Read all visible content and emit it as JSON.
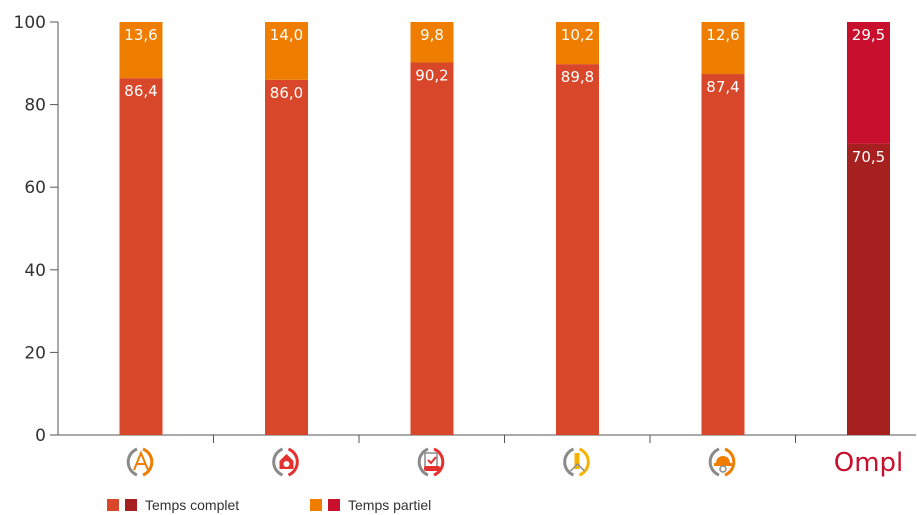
{
  "chart_data": {
    "type": "bar",
    "stacked": true,
    "categories": [
      "architecture-icon",
      "real-estate-icon",
      "automotive-expertise-icon",
      "surveyor-icon",
      "engineering-icon",
      "Ompl"
    ],
    "series": [
      {
        "name": "Temps complet",
        "values": [
          86.4,
          86.0,
          90.2,
          89.8,
          87.4,
          70.5
        ],
        "labels": [
          "86,4",
          "86,0",
          "90,2",
          "89,8",
          "87,4",
          "70,5"
        ],
        "color": "#d9472b",
        "highlight_color": "#a6201f"
      },
      {
        "name": "Temps partiel",
        "values": [
          13.6,
          14.0,
          9.8,
          10.2,
          12.6,
          29.5
        ],
        "labels": [
          "13,6",
          "14,0",
          "9,8",
          "10,2",
          "12,6",
          "29,5"
        ],
        "color": "#ef7d00",
        "highlight_color": "#c8102e"
      }
    ],
    "ylim": [
      0,
      100
    ],
    "yticks": [
      0,
      20,
      40,
      60,
      80,
      100
    ],
    "ytick_labels": [
      "0",
      "20",
      "40",
      "60",
      "80",
      "100"
    ],
    "grid": false,
    "legend_position": "bottom-left",
    "icon_colors": [
      "#ef7d00",
      "#e4312f",
      "#e4312f",
      "#f5b300",
      "#ef7d00"
    ],
    "logo_text": "Ompl"
  }
}
